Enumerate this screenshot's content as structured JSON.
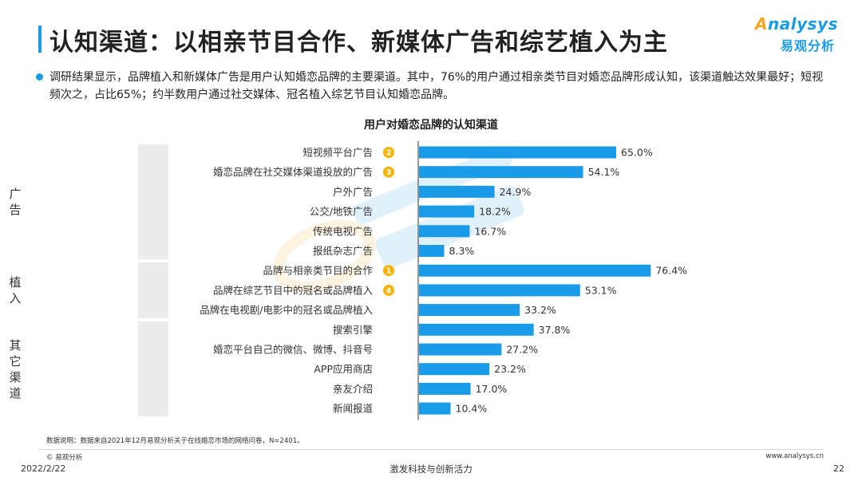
{
  "header": {
    "title": "认知渠道：以相亲节目合作、新媒体广告和综艺植入为主",
    "logo_text": "nalysys",
    "logo_letter": "A",
    "logo_cn": "易观分析"
  },
  "summary": "调研结果显示，品牌植入和新媒体广告是用户认知婚恋品牌的主要渠道。其中，76%的用户通过相亲类节目对婚恋品牌形成认知，该渠道触达效果最好；短视频次之，占比65%；约半数用户通过社交媒体、冠名植入综艺节目认知婚恋品牌。",
  "chart_data": {
    "type": "bar",
    "orientation": "horizontal",
    "title": "用户对婚恋品牌的认知渠道",
    "value_format": "percent_1dp",
    "xlim": [
      0,
      100
    ],
    "grid": false,
    "bar_color": "#1a9be8",
    "rank_badge_color": "#f5b400",
    "groups": [
      {
        "name": "广告",
        "count": 6
      },
      {
        "name": "植入",
        "count": 3
      },
      {
        "name": "其它渠道",
        "count": 5
      }
    ],
    "categories": [
      "短视频平台广告",
      "婚恋品牌在社交媒体渠道投放的广告",
      "户外广告",
      "公交/地铁广告",
      "传统电视广告",
      "报纸杂志广告",
      "品牌与相亲类节目的合作",
      "品牌在综艺节目中的冠名或品牌植入",
      "品牌在电视剧/电影中的冠名或品牌植入",
      "搜索引擎",
      "婚恋平台自己的微信、微博、抖音号",
      "APP应用商店",
      "亲友介绍",
      "新闻报道"
    ],
    "values": [
      65.0,
      54.1,
      24.9,
      18.2,
      16.7,
      8.3,
      76.4,
      53.1,
      33.2,
      37.8,
      27.2,
      23.2,
      17.0,
      10.4
    ],
    "value_labels": [
      "65.0%",
      "54.1%",
      "24.9%",
      "18.2%",
      "16.7%",
      "8.3%",
      "76.4%",
      "53.1%",
      "33.2%",
      "37.8%",
      "27.2%",
      "23.2%",
      "17.0%",
      "10.4%"
    ],
    "rank_badges": [
      "2",
      "3",
      "",
      "",
      "",
      "",
      "1",
      "4",
      "",
      "",
      "",
      "",
      "",
      ""
    ]
  },
  "footer": {
    "note": "数据说明：数据来自2021年12月易观分析关于在线婚恋市场的网络问卷，N=2401。",
    "copyright": "© 易观分析",
    "website": "www.analysys.cn",
    "date": "2022/2/22",
    "slogan": "激发科技与创新活力",
    "page": "22"
  }
}
